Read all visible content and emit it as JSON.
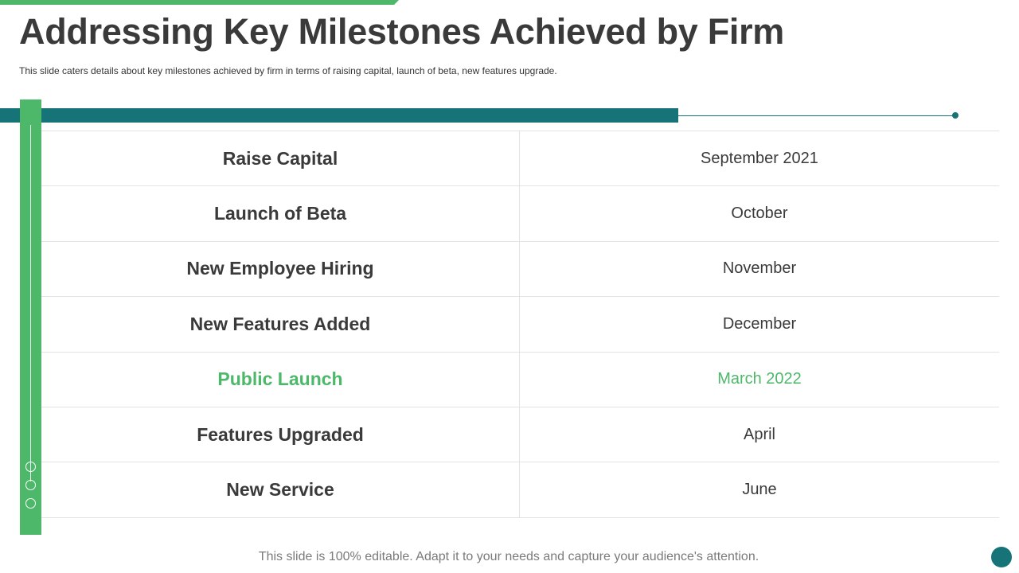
{
  "slide": {
    "title": "Addressing Key Milestones Achieved by Firm",
    "subtitle": "This slide caters details about key milestones achieved  by firm in terms of raising capital, launch of beta, new features upgrade.",
    "footer": "This slide is 100% editable. Adapt it to your needs and capture your audience's attention."
  },
  "colors": {
    "green_accent": "#4db86a",
    "teal_accent": "#167378",
    "text": "#3a3a3a"
  },
  "milestones": [
    {
      "milestone": "Raise Capital",
      "date": "September  2021"
    },
    {
      "milestone": "Launch of Beta",
      "date": "October"
    },
    {
      "milestone": "New Employee Hiring",
      "date": "November"
    },
    {
      "milestone": "New Features Added",
      "date": "December"
    },
    {
      "milestone": "Public Launch",
      "date": "March 2022"
    },
    {
      "milestone": "Features Upgraded",
      "date": "April"
    },
    {
      "milestone": "New Service",
      "date": "June"
    }
  ]
}
